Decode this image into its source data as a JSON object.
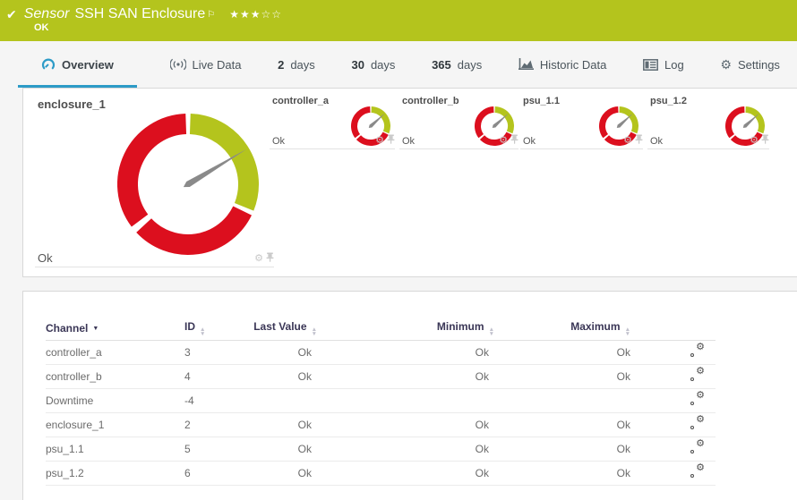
{
  "header": {
    "type_label": "Sensor",
    "title": "SSH SAN Enclosure",
    "status": "OK",
    "check_icon": "✔",
    "flag_icon": "⚐",
    "stars_filled": "★★★",
    "stars_empty": "☆☆"
  },
  "tabs": [
    {
      "label": "Overview",
      "active": true
    },
    {
      "label": "Live Data"
    },
    {
      "num": "2",
      "label": "days"
    },
    {
      "num": "30",
      "label": "days"
    },
    {
      "num": "365",
      "label": "days"
    },
    {
      "label": "Historic Data"
    },
    {
      "label": "Log"
    },
    {
      "label": "Settings",
      "gear": "⚙"
    }
  ],
  "gauges": {
    "segments": [
      {
        "from": 2,
        "to": 112,
        "color": "#b4c41d"
      },
      {
        "from": 116,
        "to": 227,
        "color": "#dc0f1e"
      },
      {
        "from": 233,
        "to": 358,
        "color": "#dc0f1e"
      }
    ],
    "needle_color": "#8a8a8a",
    "main": {
      "label": "enclosure_1",
      "value": "Ok",
      "needle_deg": 59
    },
    "small": [
      {
        "label": "controller_a",
        "value": "Ok",
        "needle_deg": 48
      },
      {
        "label": "controller_b",
        "value": "Ok",
        "needle_deg": 48
      },
      {
        "label": "psu_1.1",
        "value": "Ok",
        "needle_deg": 48
      },
      {
        "label": "psu_1.2",
        "value": "Ok",
        "needle_deg": 48
      }
    ],
    "tile_gear_icon": "⚙"
  },
  "table": {
    "columns": {
      "channel": "Channel",
      "id": "ID",
      "last": "Last Value",
      "min": "Minimum",
      "max": "Maximum"
    },
    "rows": [
      {
        "channel": "controller_a",
        "id": "3",
        "last": "Ok",
        "min": "Ok",
        "max": "Ok"
      },
      {
        "channel": "controller_b",
        "id": "4",
        "last": "Ok",
        "min": "Ok",
        "max": "Ok"
      },
      {
        "channel": "Downtime",
        "id": "-4",
        "last": "",
        "min": "",
        "max": ""
      },
      {
        "channel": "enclosure_1",
        "id": "2",
        "last": "Ok",
        "min": "Ok",
        "max": "Ok"
      },
      {
        "channel": "psu_1.1",
        "id": "5",
        "last": "Ok",
        "min": "Ok",
        "max": "Ok"
      },
      {
        "channel": "psu_1.2",
        "id": "6",
        "last": "Ok",
        "min": "Ok",
        "max": "Ok"
      }
    ]
  },
  "colors": {
    "header_green": "#b4c41d",
    "gauge_red": "#dc0f1e",
    "gauge_green": "#b4c41d",
    "active_tab_blue": "#2d9bc7"
  }
}
